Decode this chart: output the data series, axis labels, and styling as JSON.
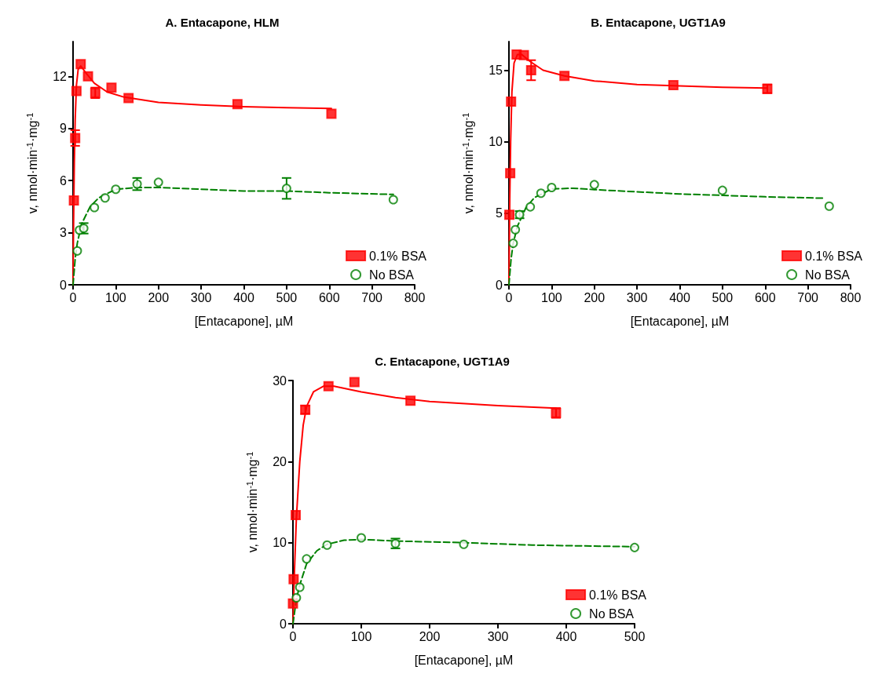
{
  "chart_data": [
    {
      "type": "scatter",
      "title": "A. Entacapone, HLM",
      "xlabel": "[Entacapone], µM",
      "ylabel": "v, nmol·min$^{-1}$·mg$^{-1}$",
      "xlim": [
        0,
        800
      ],
      "xticks": [
        0,
        100,
        200,
        300,
        400,
        500,
        600,
        700,
        800
      ],
      "ylim": [
        0,
        14
      ],
      "yticks": [
        0,
        3,
        6,
        9,
        12
      ],
      "legend": "bottom right",
      "series": [
        {
          "name": "0.1% BSA",
          "color": "#ff0000",
          "marker": "square",
          "x": [
            2,
            5,
            8,
            18,
            35,
            52,
            90,
            130,
            385,
            605
          ],
          "values": [
            4.85,
            8.45,
            11.15,
            12.7,
            12.0,
            11.05,
            11.35,
            10.75,
            10.4,
            9.85
          ],
          "errors": [
            null,
            0.45,
            null,
            null,
            null,
            0.3,
            null,
            null,
            null,
            null
          ]
        },
        {
          "name": "No BSA",
          "color": "#008000",
          "marker": "circle",
          "x": [
            10,
            15,
            25,
            50,
            75,
            100,
            150,
            200,
            500,
            750
          ],
          "values": [
            1.95,
            3.15,
            3.25,
            4.45,
            5.0,
            5.5,
            5.8,
            5.9,
            5.55,
            4.9
          ],
          "errors": [
            null,
            null,
            0.3,
            null,
            null,
            null,
            0.35,
            null,
            0.6,
            null
          ]
        },
        {
          "type": "line",
          "color": "#ff0000",
          "marker": "none",
          "line_style": "solid",
          "x": [
            0,
            1,
            3,
            5,
            8,
            12,
            18,
            30,
            50,
            80,
            120,
            200,
            300,
            400,
            500,
            605
          ],
          "values": [
            0,
            3,
            7,
            9.5,
            11.5,
            12.4,
            12.6,
            12.2,
            11.6,
            11.1,
            10.8,
            10.5,
            10.35,
            10.25,
            10.2,
            10.15
          ]
        },
        {
          "type": "line",
          "color": "#008000",
          "marker": "none",
          "line_style": "dashed",
          "x": [
            0,
            5,
            10,
            20,
            40,
            60,
            100,
            150,
            200,
            300,
            400,
            500,
            600,
            750
          ],
          "values": [
            0,
            1.5,
            2.4,
            3.5,
            4.5,
            5.0,
            5.5,
            5.6,
            5.6,
            5.5,
            5.4,
            5.4,
            5.3,
            5.2
          ]
        }
      ]
    },
    {
      "type": "scatter",
      "title": "B. Entacapone, UGT1A9",
      "xlabel": "[Entacapone], µM",
      "ylabel": "v, nmol·min$^{-1}$·mg$^{-1}$",
      "xlim": [
        0,
        800
      ],
      "xticks": [
        0,
        100,
        200,
        300,
        400,
        500,
        600,
        700,
        800
      ],
      "ylim": [
        0,
        17
      ],
      "yticks": [
        0,
        5,
        10,
        15
      ],
      "legend": "bottom right",
      "series": [
        {
          "name": "0.1% BSA",
          "color": "#ff0000",
          "marker": "square",
          "x": [
            1,
            3,
            5,
            18,
            35,
            52,
            130,
            385,
            605
          ],
          "values": [
            4.9,
            7.8,
            12.8,
            16.1,
            16.05,
            15.0,
            14.6,
            13.95,
            13.7
          ],
          "errors": [
            null,
            null,
            null,
            null,
            null,
            0.7,
            null,
            null,
            0.3
          ]
        },
        {
          "name": "No BSA",
          "color": "#008000",
          "marker": "circle",
          "x": [
            10,
            15,
            25,
            50,
            75,
            100,
            200,
            500,
            750
          ],
          "values": [
            2.9,
            3.85,
            4.9,
            5.45,
            6.4,
            6.8,
            7.0,
            6.6,
            5.5
          ],
          "errors": [
            null,
            null,
            0.25,
            null,
            null,
            null,
            null,
            null,
            null
          ]
        },
        {
          "type": "line",
          "color": "#ff0000",
          "marker": "none",
          "line_style": "solid",
          "x": [
            0,
            2,
            4,
            7,
            12,
            20,
            30,
            50,
            80,
            130,
            200,
            300,
            400,
            500,
            605
          ],
          "values": [
            0,
            6,
            10,
            13.5,
            15.5,
            16.1,
            16.1,
            15.6,
            15.0,
            14.6,
            14.25,
            14.0,
            13.9,
            13.8,
            13.75
          ]
        },
        {
          "type": "line",
          "color": "#008000",
          "marker": "none",
          "line_style": "dashed",
          "x": [
            0,
            5,
            10,
            20,
            40,
            60,
            100,
            150,
            200,
            300,
            400,
            500,
            600,
            740
          ],
          "values": [
            0,
            1.8,
            2.9,
            4.1,
            5.4,
            6.1,
            6.7,
            6.75,
            6.65,
            6.5,
            6.35,
            6.25,
            6.15,
            6.05
          ]
        }
      ]
    },
    {
      "type": "scatter",
      "title": "C. Entacapone, UGT1A9",
      "xlabel": "[Entacapone], µM",
      "ylabel": "v, nmol·min$^{-1}$·mg$^{-1}$",
      "xlim": [
        0,
        500
      ],
      "xticks": [
        0,
        100,
        200,
        300,
        400,
        500
      ],
      "ylim": [
        0,
        30
      ],
      "yticks": [
        0,
        10,
        20,
        30
      ],
      "legend": "bottom right",
      "series": [
        {
          "name": "0.1% BSA",
          "color": "#ff0000",
          "marker": "square",
          "x": [
            0,
            1,
            4,
            18,
            52,
            90,
            172,
            385
          ],
          "values": [
            2.5,
            5.5,
            13.4,
            26.4,
            29.3,
            29.8,
            27.5,
            26.0
          ],
          "errors": [
            null,
            null,
            null,
            0.5,
            null,
            null,
            null,
            0.6
          ]
        },
        {
          "name": "No BSA",
          "color": "#008000",
          "marker": "circle",
          "x": [
            5,
            10,
            20,
            50,
            100,
            150,
            250,
            500
          ],
          "values": [
            3.2,
            4.5,
            8.0,
            9.7,
            10.6,
            9.9,
            9.8,
            9.4
          ],
          "errors": [
            null,
            null,
            null,
            null,
            null,
            0.6,
            null,
            null
          ]
        },
        {
          "type": "line",
          "color": "#ff0000",
          "marker": "none",
          "line_style": "solid",
          "x": [
            0,
            2,
            5,
            10,
            15,
            20,
            30,
            45,
            60,
            100,
            150,
            200,
            300,
            385
          ],
          "values": [
            0,
            6,
            13,
            20,
            24.5,
            26.8,
            28.6,
            29.3,
            29.3,
            28.6,
            27.9,
            27.4,
            26.9,
            26.6
          ]
        },
        {
          "type": "line",
          "color": "#008000",
          "marker": "none",
          "line_style": "dashed",
          "x": [
            0,
            5,
            10,
            20,
            35,
            50,
            75,
            100,
            150,
            250,
            350,
            500
          ],
          "values": [
            0,
            3,
            4.8,
            7.4,
            9.0,
            9.8,
            10.3,
            10.4,
            10.2,
            10.0,
            9.7,
            9.5
          ]
        }
      ]
    }
  ]
}
